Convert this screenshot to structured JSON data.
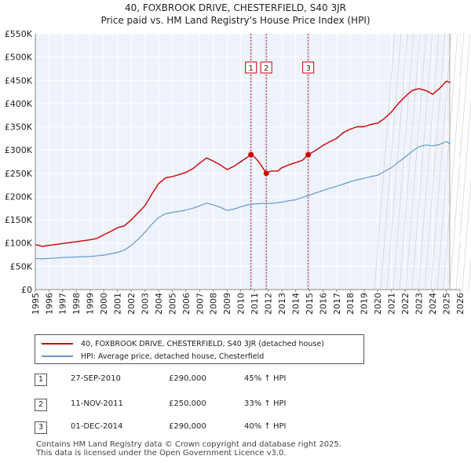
{
  "title_line1": "40, FOXBROOK DRIVE, CHESTERFIELD, S40 3JR",
  "title_line2": "Price paid vs. HM Land Registry's House Price Index (HPI)",
  "colors": {
    "property": "#cc0000",
    "hpi": "#6699cc",
    "sale_band": "#dde5f5",
    "sale_line": "#cc0000"
  },
  "chart_data": {
    "type": "line",
    "ylim": [
      0,
      550000
    ],
    "xlim": [
      1995,
      2026
    ],
    "y_ticks": [
      0,
      50000,
      100000,
      150000,
      200000,
      250000,
      300000,
      350000,
      400000,
      450000,
      500000,
      550000
    ],
    "y_tick_labels": [
      "£0",
      "£50K",
      "£100K",
      "£150K",
      "£200K",
      "£250K",
      "£300K",
      "£350K",
      "£400K",
      "£450K",
      "£500K",
      "£550K"
    ],
    "x_ticks": [
      "1995",
      "1996",
      "1997",
      "1998",
      "1999",
      "2000",
      "2001",
      "2002",
      "2003",
      "2004",
      "2005",
      "2006",
      "2007",
      "2008",
      "2009",
      "2010",
      "2011",
      "2012",
      "2013",
      "2014",
      "2015",
      "2016",
      "2017",
      "2018",
      "2019",
      "2020",
      "2021",
      "2022",
      "2023",
      "2024",
      "2025",
      "2026"
    ],
    "series": [
      {
        "name": "40, FOXBROOK DRIVE, CHESTERFIELD, S40 3JR (detached house)",
        "points": [
          [
            1995.0,
            97000
          ],
          [
            1995.5,
            93000
          ],
          [
            1996.0,
            95000
          ],
          [
            1997.0,
            99000
          ],
          [
            1998.0,
            103000
          ],
          [
            1999.0,
            107000
          ],
          [
            1999.5,
            110000
          ],
          [
            2000.0,
            118000
          ],
          [
            2000.5,
            125000
          ],
          [
            2001.0,
            133000
          ],
          [
            2001.5,
            137000
          ],
          [
            2002.0,
            150000
          ],
          [
            2002.5,
            165000
          ],
          [
            2003.0,
            180000
          ],
          [
            2003.5,
            205000
          ],
          [
            2004.0,
            228000
          ],
          [
            2004.5,
            240000
          ],
          [
            2005.0,
            243000
          ],
          [
            2005.5,
            247000
          ],
          [
            2006.0,
            252000
          ],
          [
            2006.5,
            260000
          ],
          [
            2007.0,
            272000
          ],
          [
            2007.5,
            283000
          ],
          [
            2008.0,
            276000
          ],
          [
            2008.5,
            268000
          ],
          [
            2009.0,
            258000
          ],
          [
            2009.5,
            265000
          ],
          [
            2010.0,
            275000
          ],
          [
            2010.5,
            285000
          ],
          [
            2010.74,
            290000
          ],
          [
            2011.0,
            285000
          ],
          [
            2011.3,
            275000
          ],
          [
            2011.6,
            262000
          ],
          [
            2011.86,
            250000
          ],
          [
            2012.2,
            255000
          ],
          [
            2012.7,
            255000
          ],
          [
            2013.0,
            262000
          ],
          [
            2013.5,
            268000
          ],
          [
            2014.0,
            273000
          ],
          [
            2014.5,
            278000
          ],
          [
            2014.92,
            290000
          ],
          [
            2015.5,
            300000
          ],
          [
            2016.0,
            310000
          ],
          [
            2016.5,
            318000
          ],
          [
            2017.0,
            325000
          ],
          [
            2017.5,
            338000
          ],
          [
            2018.0,
            345000
          ],
          [
            2018.5,
            350000
          ],
          [
            2019.0,
            350000
          ],
          [
            2019.5,
            355000
          ],
          [
            2020.0,
            358000
          ],
          [
            2020.5,
            368000
          ],
          [
            2021.0,
            382000
          ],
          [
            2021.5,
            400000
          ],
          [
            2022.0,
            415000
          ],
          [
            2022.5,
            428000
          ],
          [
            2023.0,
            432000
          ],
          [
            2023.5,
            428000
          ],
          [
            2024.0,
            420000
          ],
          [
            2024.5,
            432000
          ],
          [
            2025.0,
            448000
          ],
          [
            2025.3,
            445000
          ]
        ]
      },
      {
        "name": "HPI: Average price, detached house, Chesterfield",
        "points": [
          [
            1995.0,
            67000
          ],
          [
            1995.5,
            66000
          ],
          [
            1996.0,
            67000
          ],
          [
            1997.0,
            69000
          ],
          [
            1998.0,
            70000
          ],
          [
            1999.0,
            71000
          ],
          [
            2000.0,
            74000
          ],
          [
            2000.5,
            77000
          ],
          [
            2001.0,
            80000
          ],
          [
            2001.5,
            85000
          ],
          [
            2002.0,
            95000
          ],
          [
            2002.5,
            108000
          ],
          [
            2003.0,
            123000
          ],
          [
            2003.5,
            140000
          ],
          [
            2004.0,
            155000
          ],
          [
            2004.5,
            163000
          ],
          [
            2005.0,
            166000
          ],
          [
            2005.5,
            168000
          ],
          [
            2006.0,
            171000
          ],
          [
            2006.5,
            175000
          ],
          [
            2007.0,
            180000
          ],
          [
            2007.5,
            186000
          ],
          [
            2008.0,
            182000
          ],
          [
            2008.5,
            177000
          ],
          [
            2009.0,
            170000
          ],
          [
            2009.5,
            173000
          ],
          [
            2010.0,
            178000
          ],
          [
            2010.5,
            182000
          ],
          [
            2011.0,
            184000
          ],
          [
            2011.5,
            185000
          ],
          [
            2012.0,
            185000
          ],
          [
            2012.5,
            186000
          ],
          [
            2013.0,
            188000
          ],
          [
            2013.5,
            191000
          ],
          [
            2014.0,
            193000
          ],
          [
            2014.5,
            198000
          ],
          [
            2015.0,
            203000
          ],
          [
            2015.5,
            208000
          ],
          [
            2016.0,
            213000
          ],
          [
            2016.5,
            218000
          ],
          [
            2017.0,
            222000
          ],
          [
            2017.5,
            227000
          ],
          [
            2018.0,
            232000
          ],
          [
            2018.5,
            236000
          ],
          [
            2019.0,
            239000
          ],
          [
            2019.5,
            243000
          ],
          [
            2020.0,
            246000
          ],
          [
            2020.5,
            254000
          ],
          [
            2021.0,
            262000
          ],
          [
            2021.5,
            274000
          ],
          [
            2022.0,
            285000
          ],
          [
            2022.5,
            297000
          ],
          [
            2023.0,
            307000
          ],
          [
            2023.5,
            311000
          ],
          [
            2024.0,
            309000
          ],
          [
            2024.5,
            312000
          ],
          [
            2025.0,
            318000
          ],
          [
            2025.3,
            314000
          ]
        ]
      }
    ],
    "sales": [
      {
        "num": "1",
        "x": 2010.74,
        "price": 290000
      },
      {
        "num": "2",
        "x": 2011.86,
        "price": 250000
      },
      {
        "num": "3",
        "x": 2014.92,
        "price": 290000
      }
    ]
  },
  "legend": {
    "property": "40, FOXBROOK DRIVE, CHESTERFIELD, S40 3JR (detached house)",
    "hpi": "HPI: Average price, detached house, Chesterfield"
  },
  "transactions": [
    {
      "num": "1",
      "date": "27-SEP-2010",
      "price": "£290,000",
      "hpi": "45% ↑ HPI"
    },
    {
      "num": "2",
      "date": "11-NOV-2011",
      "price": "£250,000",
      "hpi": "33% ↑ HPI"
    },
    {
      "num": "3",
      "date": "01-DEC-2014",
      "price": "£290,000",
      "hpi": "40% ↑ HPI"
    }
  ],
  "footer": {
    "line1": "Contains HM Land Registry data © Crown copyright and database right 2025.",
    "line2": "This data is licensed under the Open Government Licence v3.0."
  }
}
